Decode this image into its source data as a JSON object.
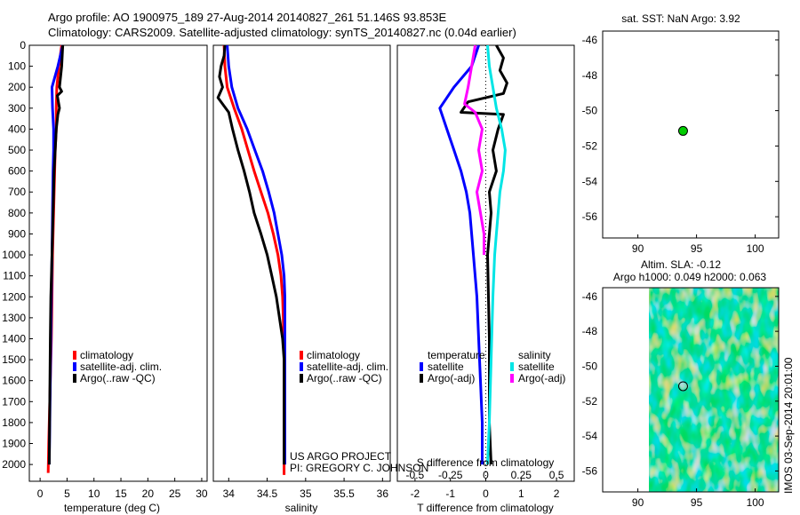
{
  "header": {
    "line1": "Argo profile: AO 1900975_189 27-Aug-2014 20140827_261 51.146S 93.853E",
    "line2": "Climatology: CARS2009. Satellite-adjusted climatology: synTS_20140827.nc (0.04d earlier)"
  },
  "depth_axis": {
    "ticks": [
      "0",
      "100",
      "200",
      "300",
      "400",
      "500",
      "600",
      "700",
      "800",
      "900",
      "1000",
      "1100",
      "1200",
      "1300",
      "1400",
      "1500",
      "1600",
      "1700",
      "1800",
      "1900",
      "2000"
    ]
  },
  "credits": {
    "line1": "US ARGO PROJECT",
    "line2": "PI: GREGORY C. JOHNSON"
  },
  "colors": {
    "climatology": "#ff0000",
    "satellite": "#0000ff",
    "argo": "#000000",
    "cyan": "#00e5e5",
    "magenta": "#ff00ff",
    "marker": "#00cc00"
  },
  "chart_data": [
    {
      "type": "line",
      "xlabel": "temperature (deg C)",
      "ylabel": "",
      "xlim": [
        -2,
        31
      ],
      "ylim": [
        2080,
        0
      ],
      "xticks": [
        0,
        5,
        10,
        15,
        20,
        25,
        30
      ],
      "legend": {
        "position": "lower-middle",
        "entries": [
          "climatology",
          "satellite-adj. clim.",
          "Argo(..raw -QC)"
        ]
      },
      "series": [
        {
          "name": "climatology",
          "color": "#ff0000",
          "x": [
            4.0,
            3.5,
            3.1,
            3.0,
            3.0,
            2.8,
            2.7,
            2.6,
            2.5,
            2.3,
            2.2,
            2.1,
            2.0,
            1.9,
            1.8,
            1.7,
            1.6,
            1.5
          ],
          "y": [
            0,
            100,
            200,
            300,
            400,
            500,
            600,
            700,
            800,
            1000,
            1200,
            1400,
            1500,
            1600,
            1700,
            1800,
            1900,
            2040
          ]
        },
        {
          "name": "satellite-adj. clim.",
          "color": "#0000ff",
          "x": [
            4.2,
            3.3,
            2.2,
            2.3,
            2.5,
            2.5,
            2.4,
            2.3,
            2.2,
            2.1,
            2.0,
            1.9,
            1.8,
            1.7
          ],
          "y": [
            0,
            100,
            200,
            300,
            400,
            500,
            600,
            800,
            1000,
            1200,
            1400,
            1600,
            1800,
            2000
          ]
        },
        {
          "name": "Argo(..raw -QC)",
          "color": "#000000",
          "x": [
            4.2,
            4.0,
            3.6,
            4.0,
            3.2,
            3.6,
            3.3,
            3.0,
            2.8,
            2.6,
            2.4,
            2.2,
            2.0,
            1.9,
            1.8,
            1.7
          ],
          "y": [
            0,
            100,
            200,
            220,
            240,
            300,
            330,
            400,
            500,
            600,
            800,
            1000,
            1200,
            1400,
            1700,
            2000
          ]
        }
      ]
    },
    {
      "type": "line",
      "xlabel": "salinity",
      "ylabel": "",
      "xlim": [
        33.8,
        36.1
      ],
      "ylim": [
        2080,
        0
      ],
      "xticks": [
        34,
        34.5,
        35,
        35.5,
        36
      ],
      "legend": {
        "position": "lower-right",
        "entries": [
          "climatology",
          "satellite-adj. clim.",
          "Argo(..raw -QC)"
        ]
      },
      "series": [
        {
          "name": "climatology",
          "color": "#ff0000",
          "x": [
            33.94,
            33.95,
            33.98,
            34.07,
            34.17,
            34.25,
            34.33,
            34.42,
            34.51,
            34.58,
            34.64,
            34.68,
            34.7,
            34.71,
            34.72,
            34.72,
            34.72
          ],
          "y": [
            0,
            100,
            200,
            300,
            400,
            500,
            600,
            700,
            800,
            900,
            1000,
            1100,
            1200,
            1300,
            1500,
            1800,
            2050
          ]
        },
        {
          "name": "satellite-adj. clim.",
          "color": "#0000ff",
          "x": [
            33.98,
            34.0,
            34.04,
            34.12,
            34.24,
            34.34,
            34.44,
            34.52,
            34.59,
            34.64,
            34.69,
            34.72,
            34.73,
            34.73,
            34.73,
            34.73
          ],
          "y": [
            0,
            100,
            200,
            300,
            400,
            500,
            600,
            700,
            800,
            900,
            1000,
            1100,
            1200,
            1400,
            1700,
            2000
          ]
        },
        {
          "name": "Argo(..raw -QC)",
          "color": "#000000",
          "x": [
            33.95,
            33.94,
            33.9,
            33.88,
            33.92,
            33.86,
            34.0,
            34.05,
            34.12,
            34.2,
            34.27,
            34.33,
            34.42,
            34.5,
            34.56,
            34.62,
            34.66,
            34.7,
            34.72,
            34.72,
            34.72
          ],
          "y": [
            0,
            50,
            100,
            150,
            200,
            250,
            320,
            400,
            500,
            600,
            700,
            800,
            900,
            1000,
            1100,
            1200,
            1300,
            1400,
            1500,
            1800,
            2000
          ]
        }
      ]
    },
    {
      "type": "line",
      "xlabel": "T difference from climatology",
      "ylabel": "",
      "secondary_xlabel": "S difference from climatology",
      "xlim": [
        -2.5,
        2.5
      ],
      "ylim": [
        2080,
        0
      ],
      "xticks": [
        -2,
        -1,
        0,
        1,
        2
      ],
      "secondary_xticks": [
        "-0.5",
        "-0.25",
        "0",
        "0.25",
        "0.5"
      ],
      "legend": {
        "position": "lower",
        "temperature_heading": "temperature",
        "salinity_heading": "salinity",
        "entries": [
          "satellite",
          "Argo(-adj)",
          "satellite",
          "Argo(-adj)"
        ]
      },
      "series": [
        {
          "name": "temperature satellite",
          "color": "#0000ff",
          "x": [
            -0.2,
            -0.4,
            -0.9,
            -1.3,
            -1.1,
            -0.9,
            -0.7,
            -0.55,
            -0.45,
            -0.35,
            -0.25,
            -0.2,
            -0.15,
            -0.1,
            -0.1
          ],
          "y": [
            0,
            100,
            200,
            300,
            400,
            500,
            600,
            700,
            800,
            1000,
            1200,
            1400,
            1600,
            1800,
            2000
          ]
        },
        {
          "name": "temperature Argo(-adj)",
          "color": "#000000",
          "x": [
            0.3,
            0.5,
            0.4,
            0.6,
            0.5,
            -0.5,
            -0.7,
            0.5,
            0.35,
            0.2,
            0.3,
            0.1,
            0.15,
            0.05,
            0.1,
            0.1,
            0.15
          ],
          "y": [
            0,
            60,
            120,
            180,
            230,
            270,
            320,
            330,
            400,
            500,
            600,
            700,
            800,
            1000,
            1400,
            1800,
            2000
          ]
        },
        {
          "name": "salinity satellite",
          "color": "#00e5e5",
          "x": [
            0.05,
            0.1,
            0.2,
            0.3,
            0.45,
            0.55,
            0.5,
            0.4,
            0.35,
            0.3,
            0.25,
            0.2,
            0.15,
            0.1,
            0.05
          ],
          "y": [
            0,
            100,
            200,
            300,
            400,
            500,
            600,
            700,
            800,
            900,
            1000,
            1200,
            1500,
            1800,
            2000
          ]
        },
        {
          "name": "salinity Argo(-adj)",
          "color": "#ff00ff",
          "x": [
            -0.3,
            -0.4,
            -0.5,
            -0.6,
            -0.3,
            -0.1,
            -0.2,
            -0.1,
            -0.25,
            -0.15,
            -0.05,
            -0.05
          ],
          "y": [
            0,
            100,
            200,
            280,
            320,
            400,
            500,
            600,
            700,
            800,
            900,
            1000
          ]
        }
      ]
    },
    {
      "type": "scatter",
      "title": "sat. SST: NaN Argo: 3.92",
      "xlim": [
        87,
        102
      ],
      "ylim": [
        -57.2,
        -45.5
      ],
      "xticks": [
        90,
        95,
        100
      ],
      "yticks": [
        -46,
        -48,
        -50,
        -52,
        -54,
        -56
      ],
      "series": [
        {
          "x": [
            93.853
          ],
          "y": [
            -51.146
          ]
        }
      ]
    },
    {
      "type": "heatmap",
      "title_line1": "Altim. SLA: -0.12",
      "title_line2": "Argo h1000: 0.049 h2000: 0.063",
      "side_label": "IMOS 03-Sep-2014 20:01:00",
      "xlim": [
        87,
        102
      ],
      "ylim": [
        -57.2,
        -45.5
      ],
      "xticks": [
        90,
        95,
        100
      ],
      "yticks": [
        -46,
        -48,
        -50,
        -52,
        -54,
        -56
      ],
      "data_x_start": 90,
      "series": [
        {
          "x": [
            93.853
          ],
          "y": [
            -51.146
          ]
        }
      ]
    }
  ]
}
